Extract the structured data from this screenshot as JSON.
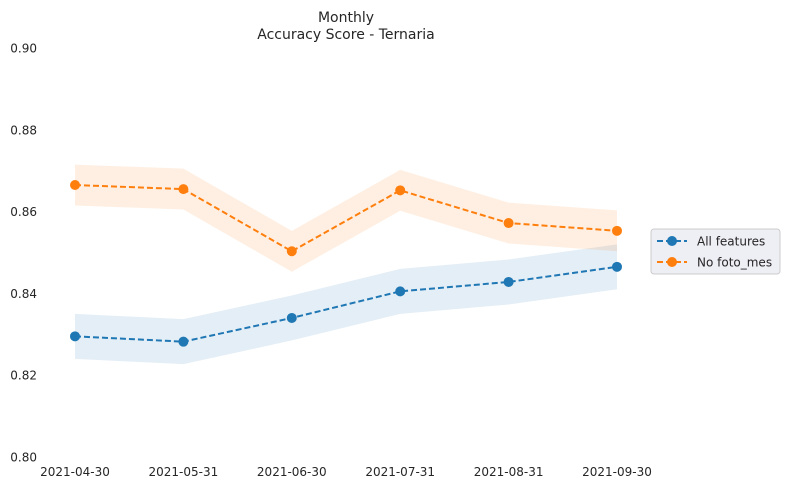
{
  "chart_data": {
    "type": "line",
    "title": "Monthly",
    "subtitle": "Accuracy Score - Ternaria",
    "xlabel": "",
    "ylabel": "",
    "categories": [
      "2021-04-30",
      "2021-05-31",
      "2021-06-30",
      "2021-07-31",
      "2021-08-31",
      "2021-09-30"
    ],
    "ylim": [
      0.8,
      0.9
    ],
    "yticks": [
      "0.80",
      "0.82",
      "0.84",
      "0.86",
      "0.88",
      "0.90"
    ],
    "grid": false,
    "legend_position": "center-right",
    "series": [
      {
        "name": "All features",
        "color": "#1f77b4",
        "line_style": "dashed",
        "marker": "circle",
        "values": [
          0.8295,
          0.8282,
          0.834,
          0.8405,
          0.8428,
          0.8465
        ],
        "band_lower": [
          0.824,
          0.8227,
          0.8285,
          0.835,
          0.8373,
          0.841
        ],
        "band_upper": [
          0.835,
          0.8337,
          0.8395,
          0.846,
          0.8483,
          0.852
        ]
      },
      {
        "name": "No foto_mes",
        "color": "#ff7f0e",
        "line_style": "dashed",
        "marker": "circle",
        "values": [
          0.8665,
          0.8655,
          0.8503,
          0.8652,
          0.8572,
          0.8553
        ],
        "band_lower": [
          0.8615,
          0.8605,
          0.8453,
          0.8602,
          0.8522,
          0.8503
        ],
        "band_upper": [
          0.8715,
          0.8705,
          0.8553,
          0.8702,
          0.8622,
          0.8603
        ]
      }
    ]
  }
}
